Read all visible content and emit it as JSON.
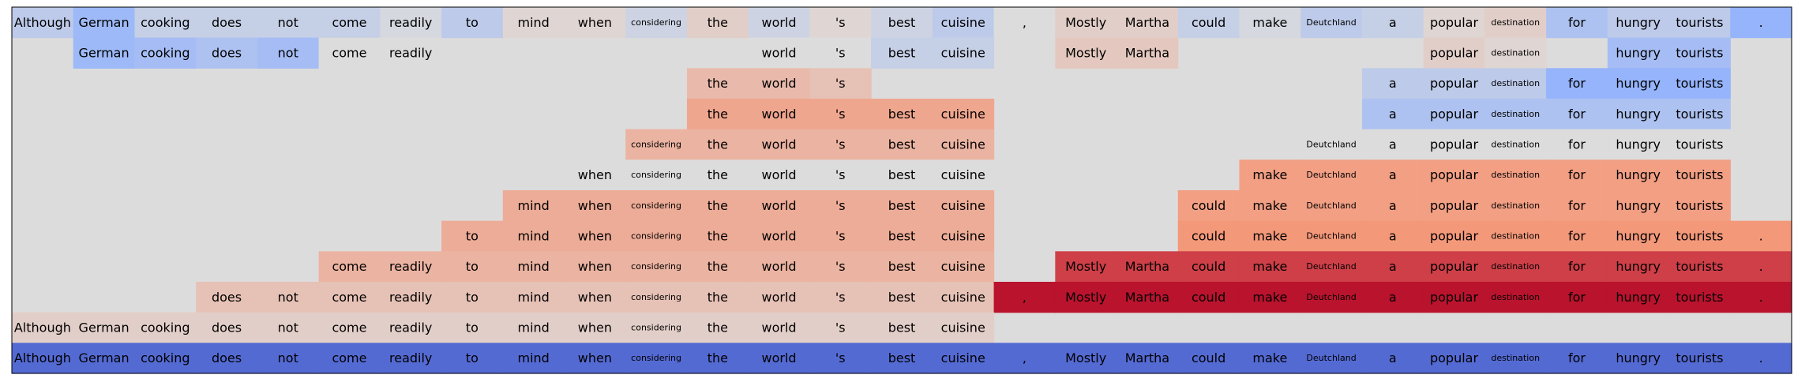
{
  "chart_data": {
    "type": "heatmap",
    "tokens": [
      "Although",
      "German",
      "cooking",
      "does",
      "not",
      "come",
      "readily",
      "to",
      "mind",
      "when",
      "considering",
      "the",
      "world",
      "'s",
      "best",
      "cuisine",
      ",",
      "Mostly",
      "Martha",
      "could",
      "make",
      "Deutchland",
      "a",
      "popular",
      "destination",
      "for",
      "hungry",
      "tourists",
      "."
    ],
    "small_tokens": [
      "considering",
      "Deutchland",
      "destination"
    ],
    "rows": [
      {
        "values": [
          -0.2,
          -0.4,
          -0.15,
          -0.15,
          -0.15,
          -0.15,
          -0.05,
          -0.2,
          0.05,
          0.05,
          -0.1,
          0.1,
          -0.1,
          0.05,
          -0.1,
          -0.2,
          0.0,
          0.1,
          0.1,
          -0.15,
          -0.05,
          -0.2,
          -0.15,
          0.05,
          0.1,
          -0.3,
          -0.2,
          -0.2,
          -0.45
        ]
      },
      {
        "values": [
          null,
          -0.4,
          -0.35,
          -0.3,
          -0.35,
          0.0,
          0.0,
          null,
          null,
          null,
          null,
          null,
          0.0,
          0.0,
          -0.15,
          -0.15,
          null,
          0.15,
          0.15,
          null,
          null,
          null,
          null,
          0.1,
          0.05,
          null,
          -0.35,
          -0.35,
          null
        ]
      },
      {
        "values": [
          null,
          null,
          null,
          null,
          null,
          null,
          null,
          null,
          null,
          null,
          null,
          0.25,
          0.25,
          0.2,
          null,
          null,
          null,
          null,
          null,
          null,
          null,
          null,
          -0.2,
          -0.2,
          -0.2,
          -0.45,
          -0.45,
          -0.45,
          null
        ]
      },
      {
        "values": [
          null,
          null,
          null,
          null,
          null,
          null,
          null,
          null,
          null,
          null,
          null,
          0.4,
          0.4,
          0.4,
          0.4,
          0.4,
          null,
          null,
          null,
          null,
          null,
          null,
          -0.3,
          -0.3,
          -0.3,
          -0.3,
          -0.3,
          -0.3,
          null
        ]
      },
      {
        "values": [
          null,
          null,
          null,
          null,
          null,
          null,
          null,
          null,
          null,
          null,
          0.3,
          0.3,
          0.3,
          0.3,
          0.3,
          0.3,
          null,
          null,
          null,
          null,
          null,
          0.0,
          0.0,
          0.0,
          0.0,
          0.0,
          0.0,
          0.0,
          null
        ]
      },
      {
        "values": [
          null,
          null,
          null,
          null,
          null,
          null,
          null,
          null,
          null,
          0.0,
          0.0,
          0.0,
          0.0,
          0.0,
          0.0,
          0.0,
          null,
          null,
          null,
          null,
          0.45,
          0.45,
          0.45,
          0.45,
          0.45,
          0.45,
          0.45,
          0.45,
          null
        ]
      },
      {
        "values": [
          null,
          null,
          null,
          null,
          null,
          null,
          null,
          null,
          0.35,
          0.35,
          0.35,
          0.35,
          0.35,
          0.35,
          0.35,
          0.35,
          null,
          null,
          null,
          0.45,
          0.45,
          0.45,
          0.45,
          0.45,
          0.45,
          0.45,
          0.45,
          0.45,
          null
        ]
      },
      {
        "values": [
          null,
          null,
          null,
          null,
          null,
          null,
          null,
          0.35,
          0.35,
          0.35,
          0.35,
          0.35,
          0.35,
          0.35,
          0.35,
          0.35,
          null,
          null,
          null,
          0.5,
          0.5,
          0.5,
          0.5,
          0.5,
          0.5,
          0.5,
          0.5,
          0.5,
          0.5
        ]
      },
      {
        "values": [
          null,
          null,
          null,
          null,
          null,
          0.3,
          0.3,
          0.3,
          0.3,
          0.3,
          0.3,
          0.3,
          0.3,
          0.3,
          0.3,
          0.3,
          null,
          0.8,
          0.8,
          0.8,
          0.8,
          0.8,
          0.8,
          0.8,
          0.8,
          0.8,
          0.8,
          0.8,
          0.8
        ]
      },
      {
        "values": [
          null,
          null,
          null,
          0.2,
          0.2,
          0.2,
          0.2,
          0.2,
          0.2,
          0.2,
          0.2,
          0.2,
          0.2,
          0.2,
          0.2,
          0.2,
          0.95,
          0.95,
          0.95,
          0.95,
          0.95,
          0.95,
          0.95,
          0.95,
          0.95,
          0.95,
          0.95,
          0.95,
          0.95
        ]
      },
      {
        "values": [
          0.1,
          0.1,
          0.1,
          0.1,
          0.1,
          0.1,
          0.1,
          0.1,
          0.1,
          0.1,
          0.1,
          0.1,
          0.1,
          0.1,
          0.1,
          0.1,
          null,
          null,
          null,
          null,
          null,
          null,
          null,
          null,
          null,
          null,
          null,
          null,
          null
        ]
      },
      {
        "values": [
          -0.85,
          -0.85,
          -0.85,
          -0.85,
          -0.85,
          -0.85,
          -0.85,
          -0.85,
          -0.85,
          -0.85,
          -0.85,
          -0.85,
          -0.85,
          -0.85,
          -0.85,
          -0.85,
          -0.85,
          -0.85,
          -0.85,
          -0.85,
          -0.85,
          -0.85,
          -0.85,
          -0.85,
          -0.85,
          -0.85,
          -0.85,
          -0.85,
          -0.85
        ]
      }
    ],
    "colormap": "coolwarm",
    "value_range": [
      -1,
      1
    ],
    "background_color": "#dddcdc",
    "frame_color": "#000000",
    "title": "",
    "xlabel": "",
    "ylabel": "",
    "grid": false,
    "legend": "none"
  }
}
